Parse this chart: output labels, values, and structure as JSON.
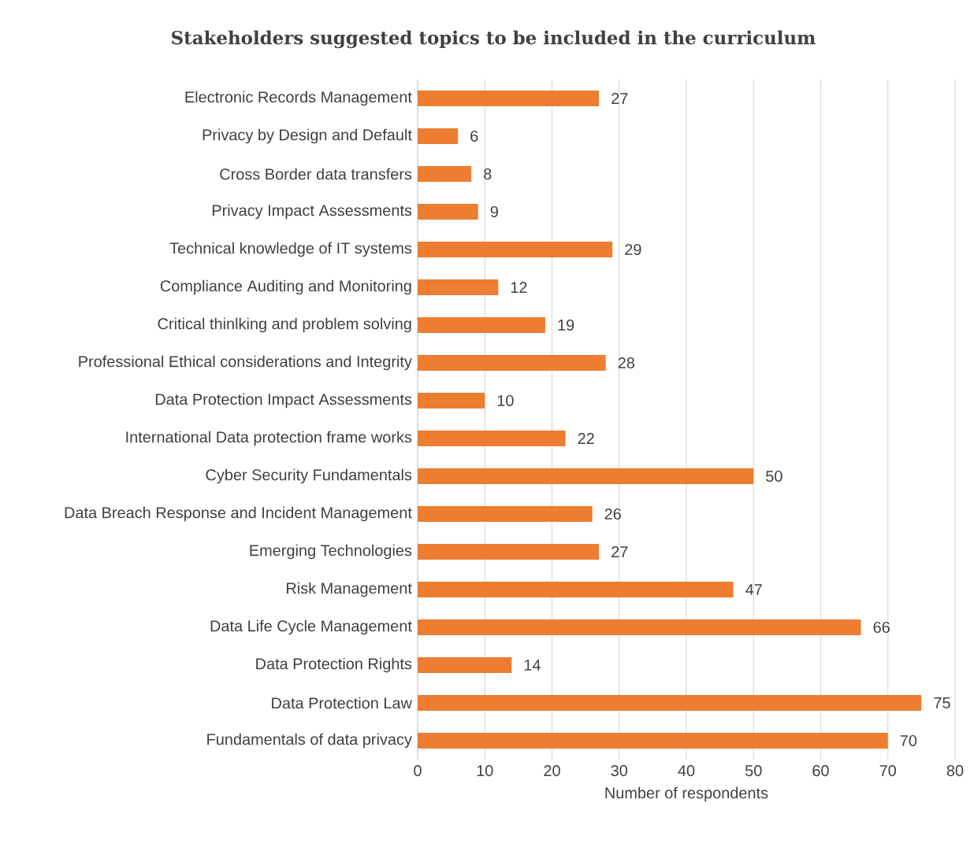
{
  "chart_data": {
    "type": "bar",
    "orientation": "horizontal",
    "title": "Stakeholders suggested topics to be included in the curriculum",
    "xlabel": "Number of respondents",
    "categories": [
      "Electronic Records Management",
      "Privacy by Design and Default",
      "Cross Border data transfers",
      "Privacy Impact Assessments",
      "Technical knowledge of IT systems",
      "Compliance Auditing and Monitoring",
      "Critical thinlking and problem solving",
      "Professional Ethical considerations and Integrity",
      "Data Protection Impact Assessments",
      "International Data protection frame works",
      "Cyber Security Fundamentals",
      "Data Breach Response and Incident Management",
      "Emerging Technologies",
      "Risk Management",
      "Data Life Cycle Management",
      "Data Protection Rights",
      "Data Protection Law",
      "Fundamentals of data privacy"
    ],
    "values": [
      27,
      6,
      8,
      9,
      29,
      12,
      19,
      28,
      10,
      22,
      50,
      26,
      27,
      47,
      66,
      14,
      75,
      70
    ],
    "color": "#ed7d31",
    "xlim": [
      0,
      80
    ],
    "xticks": [
      0,
      10,
      20,
      30,
      40,
      50,
      60,
      70,
      80
    ],
    "grid": "x",
    "data_labels": true
  }
}
